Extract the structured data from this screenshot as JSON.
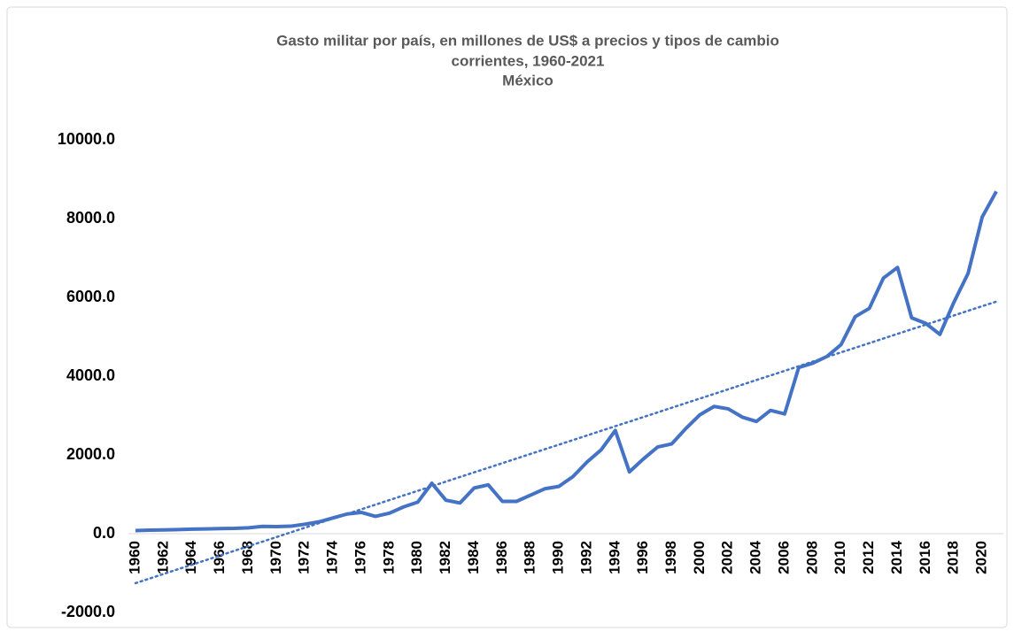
{
  "chart_data": {
    "type": "line",
    "title": [
      "Gasto militar por país, en millones de US$ a precios y tipos de cambio",
      "corrientes, 1960-2021",
      "México"
    ],
    "categories": [
      "1960",
      null,
      "1962",
      null,
      "1964",
      null,
      "1966",
      null,
      "1968",
      null,
      "1970",
      null,
      "1972",
      null,
      "1974",
      null,
      "1976",
      null,
      "1978",
      null,
      "1980",
      null,
      "1982",
      null,
      "1984",
      null,
      "1986",
      null,
      "1988",
      null,
      "1990",
      null,
      "1992",
      null,
      "1994",
      null,
      "1996",
      null,
      "1998",
      null,
      "2000",
      null,
      "2002",
      null,
      "2004",
      null,
      "2006",
      null,
      "2008",
      null,
      "2010",
      null,
      "2012",
      null,
      "2014",
      null,
      "2016",
      null,
      "2018",
      null,
      "2020",
      null
    ],
    "series": [
      {
        "color": "#4472c4",
        "values": [
          80,
          90,
          95,
          105,
          115,
          120,
          130,
          135,
          150,
          185,
          180,
          190,
          240,
          300,
          400,
          500,
          540,
          440,
          520,
          680,
          800,
          1280,
          850,
          780,
          1160,
          1240,
          820,
          820,
          980,
          1140,
          1200,
          1450,
          1820,
          2130,
          2620,
          1570,
          1900,
          2200,
          2280,
          2670,
          3020,
          3230,
          3170,
          2960,
          2850,
          3130,
          3040,
          4220,
          4330,
          4500,
          4800,
          5510,
          5720,
          6490,
          6760,
          5480,
          5340,
          5060,
          5880,
          6610,
          8040,
          8690
        ]
      }
    ],
    "trendline": "linear",
    "ylim": [
      -2000,
      10000
    ],
    "yticks": [
      {
        "value": -2000,
        "label": "-2000.0"
      },
      {
        "value": 0,
        "label": "0.0"
      },
      {
        "value": 2000,
        "label": "2000.0"
      },
      {
        "value": 4000,
        "label": "4000.0"
      },
      {
        "value": 6000,
        "label": "6000.0"
      },
      {
        "value": 8000,
        "label": "8000.0"
      },
      {
        "value": 10000,
        "label": "10000.0"
      }
    ],
    "grid": false
  }
}
